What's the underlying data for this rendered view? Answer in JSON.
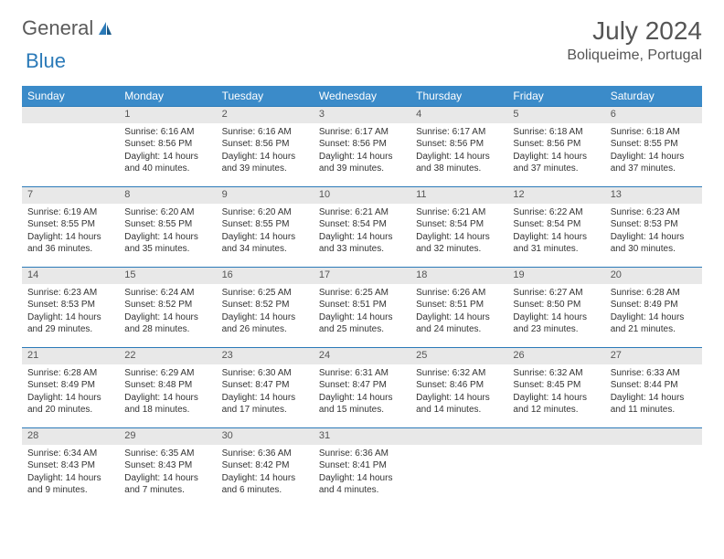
{
  "logo": {
    "text1": "General",
    "text2": "Blue"
  },
  "title": "July 2024",
  "location": "Boliqueime, Portugal",
  "colors": {
    "header_bg": "#3b8bc9",
    "header_text": "#ffffff",
    "daynum_bg": "#e8e8e8",
    "divider": "#2b7ab8",
    "logo_gray": "#5a5a5a",
    "logo_blue": "#2b7ab8"
  },
  "weekdays": [
    "Sunday",
    "Monday",
    "Tuesday",
    "Wednesday",
    "Thursday",
    "Friday",
    "Saturday"
  ],
  "weeks": [
    {
      "nums": [
        "",
        "1",
        "2",
        "3",
        "4",
        "5",
        "6"
      ],
      "cells": [
        null,
        {
          "sunrise": "Sunrise: 6:16 AM",
          "sunset": "Sunset: 8:56 PM",
          "day": "Daylight: 14 hours and 40 minutes."
        },
        {
          "sunrise": "Sunrise: 6:16 AM",
          "sunset": "Sunset: 8:56 PM",
          "day": "Daylight: 14 hours and 39 minutes."
        },
        {
          "sunrise": "Sunrise: 6:17 AM",
          "sunset": "Sunset: 8:56 PM",
          "day": "Daylight: 14 hours and 39 minutes."
        },
        {
          "sunrise": "Sunrise: 6:17 AM",
          "sunset": "Sunset: 8:56 PM",
          "day": "Daylight: 14 hours and 38 minutes."
        },
        {
          "sunrise": "Sunrise: 6:18 AM",
          "sunset": "Sunset: 8:56 PM",
          "day": "Daylight: 14 hours and 37 minutes."
        },
        {
          "sunrise": "Sunrise: 6:18 AM",
          "sunset": "Sunset: 8:55 PM",
          "day": "Daylight: 14 hours and 37 minutes."
        }
      ]
    },
    {
      "nums": [
        "7",
        "8",
        "9",
        "10",
        "11",
        "12",
        "13"
      ],
      "cells": [
        {
          "sunrise": "Sunrise: 6:19 AM",
          "sunset": "Sunset: 8:55 PM",
          "day": "Daylight: 14 hours and 36 minutes."
        },
        {
          "sunrise": "Sunrise: 6:20 AM",
          "sunset": "Sunset: 8:55 PM",
          "day": "Daylight: 14 hours and 35 minutes."
        },
        {
          "sunrise": "Sunrise: 6:20 AM",
          "sunset": "Sunset: 8:55 PM",
          "day": "Daylight: 14 hours and 34 minutes."
        },
        {
          "sunrise": "Sunrise: 6:21 AM",
          "sunset": "Sunset: 8:54 PM",
          "day": "Daylight: 14 hours and 33 minutes."
        },
        {
          "sunrise": "Sunrise: 6:21 AM",
          "sunset": "Sunset: 8:54 PM",
          "day": "Daylight: 14 hours and 32 minutes."
        },
        {
          "sunrise": "Sunrise: 6:22 AM",
          "sunset": "Sunset: 8:54 PM",
          "day": "Daylight: 14 hours and 31 minutes."
        },
        {
          "sunrise": "Sunrise: 6:23 AM",
          "sunset": "Sunset: 8:53 PM",
          "day": "Daylight: 14 hours and 30 minutes."
        }
      ]
    },
    {
      "nums": [
        "14",
        "15",
        "16",
        "17",
        "18",
        "19",
        "20"
      ],
      "cells": [
        {
          "sunrise": "Sunrise: 6:23 AM",
          "sunset": "Sunset: 8:53 PM",
          "day": "Daylight: 14 hours and 29 minutes."
        },
        {
          "sunrise": "Sunrise: 6:24 AM",
          "sunset": "Sunset: 8:52 PM",
          "day": "Daylight: 14 hours and 28 minutes."
        },
        {
          "sunrise": "Sunrise: 6:25 AM",
          "sunset": "Sunset: 8:52 PM",
          "day": "Daylight: 14 hours and 26 minutes."
        },
        {
          "sunrise": "Sunrise: 6:25 AM",
          "sunset": "Sunset: 8:51 PM",
          "day": "Daylight: 14 hours and 25 minutes."
        },
        {
          "sunrise": "Sunrise: 6:26 AM",
          "sunset": "Sunset: 8:51 PM",
          "day": "Daylight: 14 hours and 24 minutes."
        },
        {
          "sunrise": "Sunrise: 6:27 AM",
          "sunset": "Sunset: 8:50 PM",
          "day": "Daylight: 14 hours and 23 minutes."
        },
        {
          "sunrise": "Sunrise: 6:28 AM",
          "sunset": "Sunset: 8:49 PM",
          "day": "Daylight: 14 hours and 21 minutes."
        }
      ]
    },
    {
      "nums": [
        "21",
        "22",
        "23",
        "24",
        "25",
        "26",
        "27"
      ],
      "cells": [
        {
          "sunrise": "Sunrise: 6:28 AM",
          "sunset": "Sunset: 8:49 PM",
          "day": "Daylight: 14 hours and 20 minutes."
        },
        {
          "sunrise": "Sunrise: 6:29 AM",
          "sunset": "Sunset: 8:48 PM",
          "day": "Daylight: 14 hours and 18 minutes."
        },
        {
          "sunrise": "Sunrise: 6:30 AM",
          "sunset": "Sunset: 8:47 PM",
          "day": "Daylight: 14 hours and 17 minutes."
        },
        {
          "sunrise": "Sunrise: 6:31 AM",
          "sunset": "Sunset: 8:47 PM",
          "day": "Daylight: 14 hours and 15 minutes."
        },
        {
          "sunrise": "Sunrise: 6:32 AM",
          "sunset": "Sunset: 8:46 PM",
          "day": "Daylight: 14 hours and 14 minutes."
        },
        {
          "sunrise": "Sunrise: 6:32 AM",
          "sunset": "Sunset: 8:45 PM",
          "day": "Daylight: 14 hours and 12 minutes."
        },
        {
          "sunrise": "Sunrise: 6:33 AM",
          "sunset": "Sunset: 8:44 PM",
          "day": "Daylight: 14 hours and 11 minutes."
        }
      ]
    },
    {
      "nums": [
        "28",
        "29",
        "30",
        "31",
        "",
        "",
        ""
      ],
      "cells": [
        {
          "sunrise": "Sunrise: 6:34 AM",
          "sunset": "Sunset: 8:43 PM",
          "day": "Daylight: 14 hours and 9 minutes."
        },
        {
          "sunrise": "Sunrise: 6:35 AM",
          "sunset": "Sunset: 8:43 PM",
          "day": "Daylight: 14 hours and 7 minutes."
        },
        {
          "sunrise": "Sunrise: 6:36 AM",
          "sunset": "Sunset: 8:42 PM",
          "day": "Daylight: 14 hours and 6 minutes."
        },
        {
          "sunrise": "Sunrise: 6:36 AM",
          "sunset": "Sunset: 8:41 PM",
          "day": "Daylight: 14 hours and 4 minutes."
        },
        null,
        null,
        null
      ]
    }
  ]
}
